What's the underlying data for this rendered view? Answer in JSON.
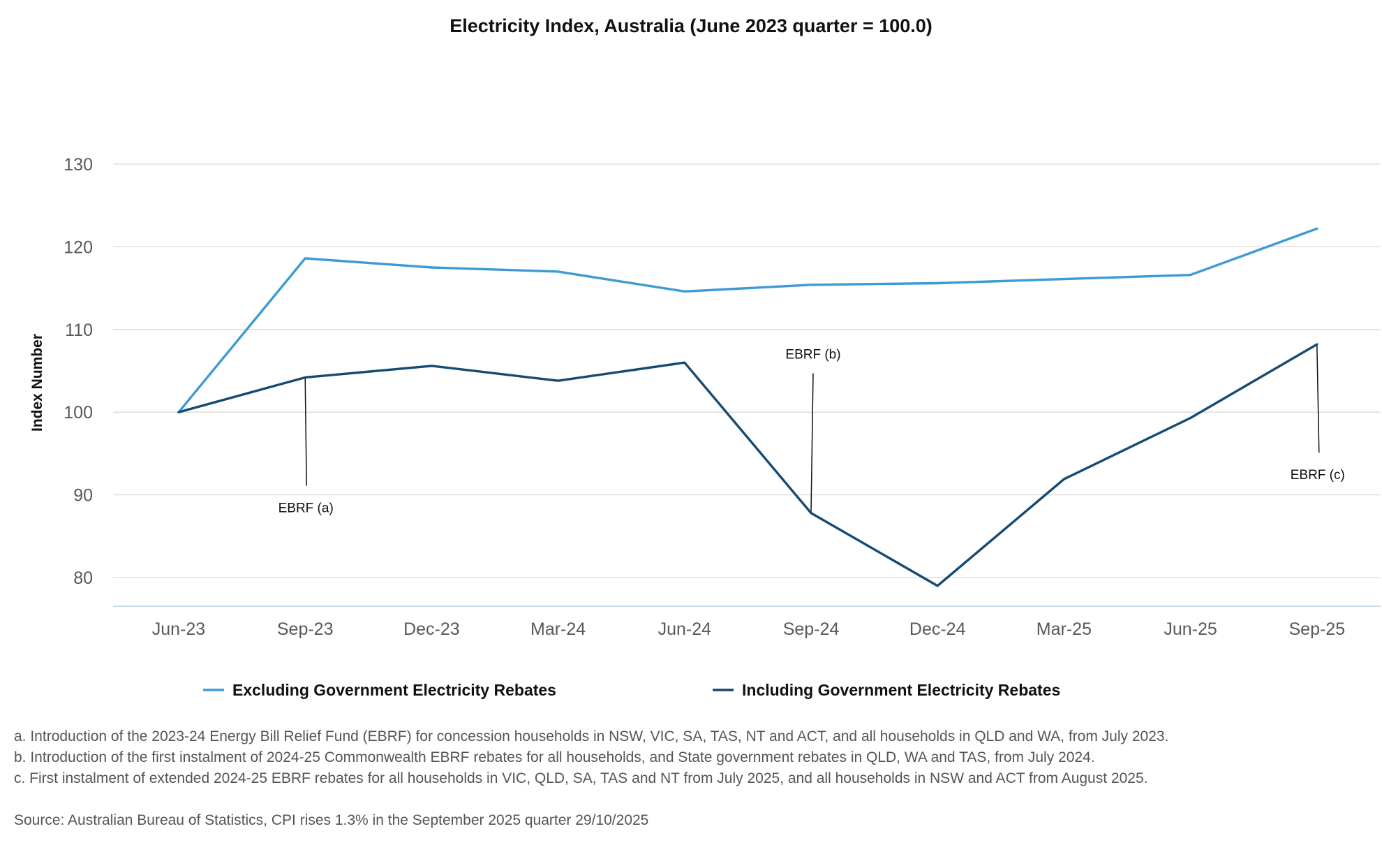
{
  "chart_data": {
    "type": "line",
    "title": "Electricity Index, Australia (June 2023 quarter = 100.0)",
    "ylabel": "Index Number",
    "xlabel": "",
    "ylim": [
      76.5,
      131.5
    ],
    "yticks": [
      80,
      90,
      100,
      110,
      120,
      130
    ],
    "categories": [
      "Jun-23",
      "Sep-23",
      "Dec-23",
      "Mar-24",
      "Jun-24",
      "Sep-24",
      "Dec-24",
      "Mar-25",
      "Jun-25",
      "Sep-25"
    ],
    "grid": "horizontal",
    "legend_position": "bottom",
    "series": [
      {
        "name": "Excluding Government Electricity Rebates",
        "color": "#3d9bd4",
        "values": [
          100.0,
          118.6,
          117.5,
          117.0,
          114.6,
          115.4,
          115.6,
          116.1,
          116.6,
          122.2
        ]
      },
      {
        "name": "Including Government Electricity Rebates",
        "color": "#154a72",
        "values": [
          100.0,
          104.2,
          105.6,
          103.8,
          106.0,
          87.8,
          79.0,
          91.9,
          99.3,
          108.2
        ]
      }
    ],
    "annotations": [
      {
        "text": "EBRF (a)",
        "category": "Sep-23",
        "series": 1,
        "position": "below"
      },
      {
        "text": "EBRF (b)",
        "category": "Sep-24",
        "series": 1,
        "position": "above"
      },
      {
        "text": "EBRF (c)",
        "category": "Sep-25",
        "series": 1,
        "position": "below"
      }
    ]
  },
  "notes": [
    "a. Introduction of the 2023-24 Energy Bill Relief Fund (EBRF) for concession households in NSW, VIC, SA, TAS, NT and ACT, and all households in QLD and WA, from July 2023.",
    "b. Introduction of the first instalment of 2024-25 Commonwealth EBRF rebates for all households, and State government rebates in QLD, WA and TAS, from July 2024.",
    "c. First instalment of extended 2024-25 EBRF rebates for all households in VIC, QLD, SA, TAS and NT from July 2025, and all households in NSW and ACT from August 2025."
  ],
  "source": "Source: Australian Bureau of Statistics, CPI rises 1.3% in the September 2025 quarter 29/10/2025"
}
